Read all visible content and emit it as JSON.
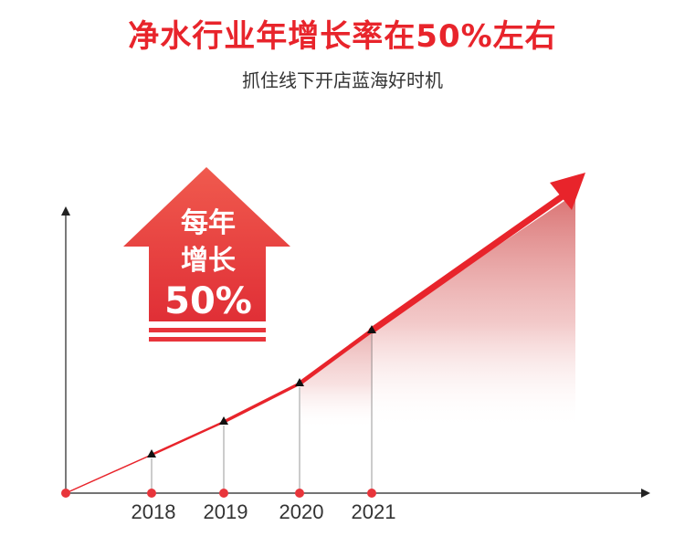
{
  "header": {
    "title": "净水行业年增长率在50%左右",
    "subtitle": "抓住线下开店蓝海好时机"
  },
  "badge": {
    "line1": "每年",
    "line2": "增长",
    "line3": "50%"
  },
  "colors": {
    "accent": "#e8242b",
    "arrow_fill": "#ee4a4a",
    "axis": "#222222",
    "dot": "#e8353b",
    "text": "#333333"
  },
  "chart_data": {
    "type": "line",
    "categories": [
      "2018",
      "2019",
      "2020",
      "2021"
    ],
    "values": [
      1,
      2,
      3,
      4
    ],
    "title": "",
    "xlabel": "",
    "ylabel": "",
    "grid": false,
    "legend": "none"
  }
}
